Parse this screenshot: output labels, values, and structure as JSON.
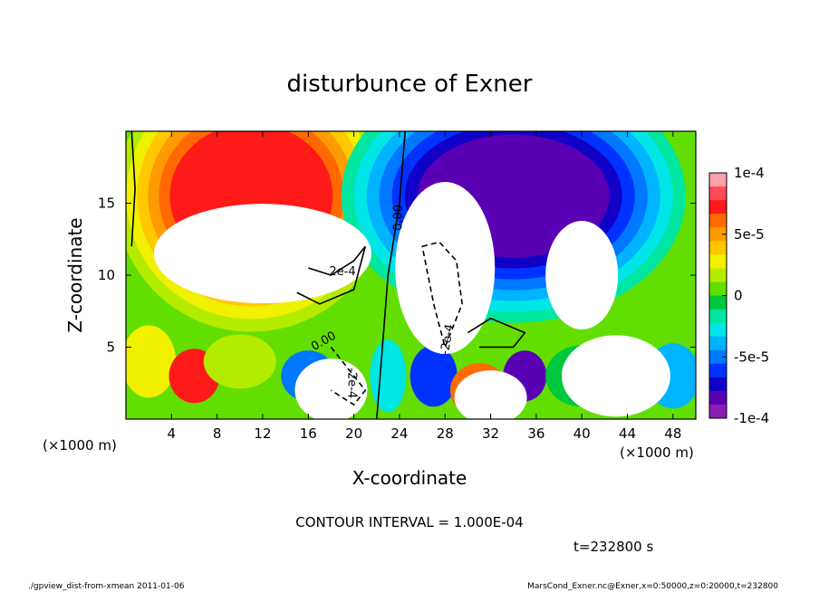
{
  "chart_data": {
    "type": "heatmap",
    "title": "disturbunce of Exner",
    "xlabel": "X-coordinate",
    "ylabel": "Z-coordinate",
    "x_unit": "(×1000 m)",
    "x_unit_right": "(×1000 m)",
    "z_unit": "(×1000 m)",
    "xlim": [
      0,
      50
    ],
    "ylim": [
      0,
      20
    ],
    "x_ticks": [
      4,
      8,
      12,
      16,
      20,
      24,
      28,
      32,
      36,
      40,
      44,
      48
    ],
    "y_ticks": [
      5,
      10,
      15
    ],
    "colorbar": {
      "min": -0.0001,
      "max": 0.0001,
      "tick_values": [
        0.0001,
        5e-05,
        0,
        -5e-05,
        -0.0001
      ],
      "tick_labels": [
        "1e-4",
        "5e-5",
        "0",
        "-5e-5",
        "-1e-4"
      ],
      "colors": [
        "#ff9fa8",
        "#ff4a5a",
        "#ff1a1a",
        "#ff6a00",
        "#ff9a00",
        "#ffc800",
        "#f0f000",
        "#b4ec00",
        "#62df00",
        "#00c83c",
        "#00e6a0",
        "#00e6e6",
        "#00b4ff",
        "#0078ff",
        "#0032ff",
        "#1000c8",
        "#5a00b4",
        "#8c1eb4"
      ]
    },
    "contour_labels": [
      "0.00",
      "2e-4",
      "-2e-4",
      "0.00",
      "-2e-4"
    ],
    "contour_interval": "CONTOUR INTERVAL = 1.000E-04",
    "time_label": "t=232800 s"
  },
  "footer": {
    "left": "./gpview_dist-from-xmean  2011-01-06",
    "right": "MarsCond_Exner.nc@Exner,x=0:50000,z=0:20000,t=232800"
  }
}
